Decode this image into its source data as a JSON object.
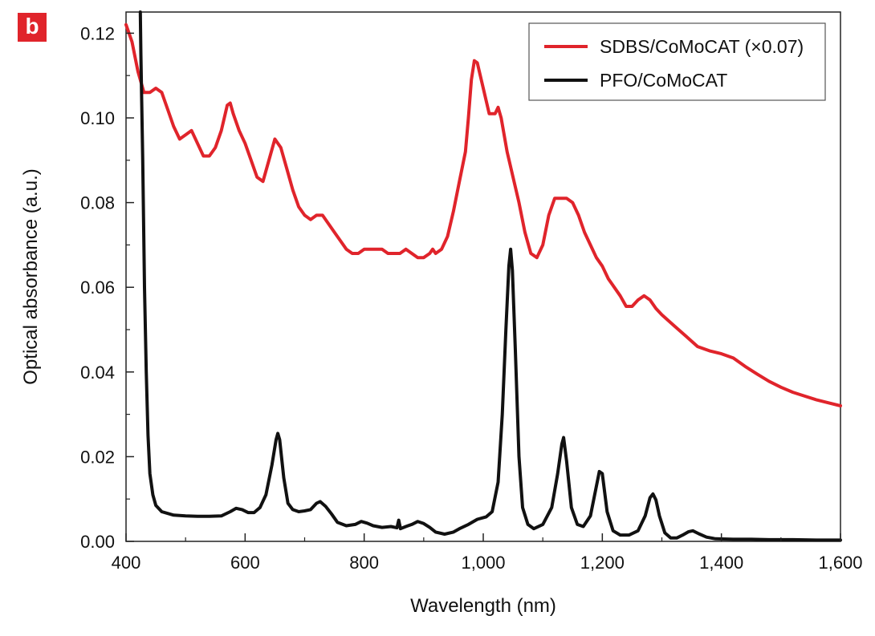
{
  "panel_label": "b",
  "chart_data": {
    "type": "line",
    "xlabel": "Wavelength (nm)",
    "ylabel": "Optical absorbance (a.u.)",
    "xlim": [
      400,
      1600
    ],
    "ylim": [
      0,
      0.125
    ],
    "x_ticks": [
      {
        "value": 400,
        "label": "400"
      },
      {
        "value": 600,
        "label": "600"
      },
      {
        "value": 800,
        "label": "800"
      },
      {
        "value": 1000,
        "label": "1,000"
      },
      {
        "value": 1200,
        "label": "1,200"
      },
      {
        "value": 1400,
        "label": "1,400"
      },
      {
        "value": 1600,
        "label": "1,600"
      }
    ],
    "y_ticks": [
      {
        "value": 0.0,
        "label": "0.00"
      },
      {
        "value": 0.02,
        "label": "0.02"
      },
      {
        "value": 0.04,
        "label": "0.04"
      },
      {
        "value": 0.06,
        "label": "0.06"
      },
      {
        "value": 0.08,
        "label": "0.08"
      },
      {
        "value": 0.1,
        "label": "0.10"
      },
      {
        "value": 0.12,
        "label": "0.12"
      }
    ],
    "grid": false,
    "legend_position": "top-right",
    "series": [
      {
        "name": "SDBS/CoMoCAT (×0.07)",
        "color": "#e0242b",
        "points": [
          [
            400,
            0.122
          ],
          [
            410,
            0.118
          ],
          [
            420,
            0.111
          ],
          [
            430,
            0.106
          ],
          [
            440,
            0.106
          ],
          [
            450,
            0.107
          ],
          [
            460,
            0.106
          ],
          [
            470,
            0.102
          ],
          [
            480,
            0.098
          ],
          [
            490,
            0.095
          ],
          [
            500,
            0.096
          ],
          [
            510,
            0.097
          ],
          [
            520,
            0.094
          ],
          [
            530,
            0.091
          ],
          [
            540,
            0.091
          ],
          [
            550,
            0.093
          ],
          [
            560,
            0.097
          ],
          [
            570,
            0.103
          ],
          [
            575,
            0.1035
          ],
          [
            580,
            0.101
          ],
          [
            590,
            0.097
          ],
          [
            600,
            0.094
          ],
          [
            610,
            0.09
          ],
          [
            620,
            0.086
          ],
          [
            630,
            0.085
          ],
          [
            640,
            0.09
          ],
          [
            650,
            0.095
          ],
          [
            660,
            0.093
          ],
          [
            670,
            0.088
          ],
          [
            680,
            0.083
          ],
          [
            690,
            0.079
          ],
          [
            700,
            0.077
          ],
          [
            710,
            0.076
          ],
          [
            720,
            0.077
          ],
          [
            730,
            0.077
          ],
          [
            740,
            0.075
          ],
          [
            750,
            0.073
          ],
          [
            760,
            0.071
          ],
          [
            770,
            0.069
          ],
          [
            780,
            0.068
          ],
          [
            790,
            0.068
          ],
          [
            800,
            0.069
          ],
          [
            810,
            0.069
          ],
          [
            820,
            0.069
          ],
          [
            830,
            0.069
          ],
          [
            840,
            0.068
          ],
          [
            850,
            0.068
          ],
          [
            860,
            0.068
          ],
          [
            870,
            0.069
          ],
          [
            880,
            0.068
          ],
          [
            890,
            0.067
          ],
          [
            900,
            0.067
          ],
          [
            910,
            0.068
          ],
          [
            915,
            0.069
          ],
          [
            920,
            0.068
          ],
          [
            930,
            0.069
          ],
          [
            940,
            0.072
          ],
          [
            950,
            0.078
          ],
          [
            960,
            0.085
          ],
          [
            970,
            0.092
          ],
          [
            975,
            0.1
          ],
          [
            980,
            0.109
          ],
          [
            985,
            0.1135
          ],
          [
            990,
            0.113
          ],
          [
            1000,
            0.107
          ],
          [
            1010,
            0.101
          ],
          [
            1020,
            0.101
          ],
          [
            1025,
            0.1025
          ],
          [
            1030,
            0.1
          ],
          [
            1040,
            0.092
          ],
          [
            1050,
            0.086
          ],
          [
            1060,
            0.08
          ],
          [
            1070,
            0.073
          ],
          [
            1080,
            0.068
          ],
          [
            1090,
            0.067
          ],
          [
            1100,
            0.07
          ],
          [
            1110,
            0.077
          ],
          [
            1120,
            0.081
          ],
          [
            1130,
            0.081
          ],
          [
            1140,
            0.081
          ],
          [
            1150,
            0.08
          ],
          [
            1160,
            0.077
          ],
          [
            1170,
            0.073
          ],
          [
            1180,
            0.07
          ],
          [
            1190,
            0.067
          ],
          [
            1200,
            0.065
          ],
          [
            1210,
            0.062
          ],
          [
            1220,
            0.06
          ],
          [
            1230,
            0.058
          ],
          [
            1240,
            0.0555
          ],
          [
            1250,
            0.0555
          ],
          [
            1260,
            0.057
          ],
          [
            1270,
            0.058
          ],
          [
            1280,
            0.057
          ],
          [
            1290,
            0.055
          ],
          [
            1300,
            0.0535
          ],
          [
            1320,
            0.051
          ],
          [
            1340,
            0.0485
          ],
          [
            1360,
            0.046
          ],
          [
            1380,
            0.045
          ],
          [
            1400,
            0.0443
          ],
          [
            1420,
            0.0433
          ],
          [
            1440,
            0.0413
          ],
          [
            1460,
            0.0395
          ],
          [
            1480,
            0.0378
          ],
          [
            1500,
            0.0364
          ],
          [
            1520,
            0.0352
          ],
          [
            1540,
            0.0343
          ],
          [
            1560,
            0.0334
          ],
          [
            1580,
            0.0327
          ],
          [
            1600,
            0.032
          ]
        ]
      },
      {
        "name": "PFO/CoMoCAT",
        "color": "#111111",
        "points": [
          [
            424,
            0.125
          ],
          [
            425,
            0.115
          ],
          [
            428,
            0.09
          ],
          [
            431,
            0.06
          ],
          [
            434,
            0.04
          ],
          [
            437,
            0.025
          ],
          [
            440,
            0.016
          ],
          [
            445,
            0.011
          ],
          [
            450,
            0.0085
          ],
          [
            460,
            0.007
          ],
          [
            480,
            0.0062
          ],
          [
            500,
            0.006
          ],
          [
            520,
            0.0059
          ],
          [
            540,
            0.0059
          ],
          [
            560,
            0.006
          ],
          [
            575,
            0.007
          ],
          [
            585,
            0.0078
          ],
          [
            595,
            0.0075
          ],
          [
            605,
            0.0068
          ],
          [
            615,
            0.0068
          ],
          [
            625,
            0.008
          ],
          [
            635,
            0.011
          ],
          [
            645,
            0.018
          ],
          [
            652,
            0.024
          ],
          [
            655,
            0.0255
          ],
          [
            658,
            0.024
          ],
          [
            665,
            0.015
          ],
          [
            672,
            0.009
          ],
          [
            680,
            0.0075
          ],
          [
            690,
            0.007
          ],
          [
            700,
            0.0072
          ],
          [
            710,
            0.0075
          ],
          [
            720,
            0.009
          ],
          [
            726,
            0.0094
          ],
          [
            735,
            0.0083
          ],
          [
            745,
            0.0065
          ],
          [
            755,
            0.0045
          ],
          [
            770,
            0.0037
          ],
          [
            785,
            0.004
          ],
          [
            795,
            0.0047
          ],
          [
            805,
            0.0043
          ],
          [
            815,
            0.0037
          ],
          [
            830,
            0.0033
          ],
          [
            845,
            0.0035
          ],
          [
            855,
            0.0032
          ],
          [
            858,
            0.005
          ],
          [
            861,
            0.003
          ],
          [
            870,
            0.0035
          ],
          [
            880,
            0.004
          ],
          [
            890,
            0.0047
          ],
          [
            900,
            0.0042
          ],
          [
            910,
            0.0033
          ],
          [
            920,
            0.0022
          ],
          [
            935,
            0.0017
          ],
          [
            950,
            0.0022
          ],
          [
            960,
            0.003
          ],
          [
            975,
            0.004
          ],
          [
            990,
            0.0052
          ],
          [
            1005,
            0.0058
          ],
          [
            1015,
            0.007
          ],
          [
            1025,
            0.014
          ],
          [
            1032,
            0.03
          ],
          [
            1038,
            0.05
          ],
          [
            1043,
            0.065
          ],
          [
            1046,
            0.069
          ],
          [
            1049,
            0.064
          ],
          [
            1054,
            0.045
          ],
          [
            1060,
            0.02
          ],
          [
            1066,
            0.008
          ],
          [
            1075,
            0.004
          ],
          [
            1085,
            0.003
          ],
          [
            1100,
            0.004
          ],
          [
            1115,
            0.008
          ],
          [
            1125,
            0.016
          ],
          [
            1132,
            0.023
          ],
          [
            1135,
            0.0245
          ],
          [
            1140,
            0.019
          ],
          [
            1148,
            0.008
          ],
          [
            1158,
            0.004
          ],
          [
            1168,
            0.0035
          ],
          [
            1180,
            0.006
          ],
          [
            1190,
            0.013
          ],
          [
            1195,
            0.0165
          ],
          [
            1200,
            0.016
          ],
          [
            1208,
            0.007
          ],
          [
            1218,
            0.0025
          ],
          [
            1230,
            0.0015
          ],
          [
            1245,
            0.0015
          ],
          [
            1260,
            0.0025
          ],
          [
            1272,
            0.006
          ],
          [
            1280,
            0.0103
          ],
          [
            1285,
            0.0112
          ],
          [
            1290,
            0.0098
          ],
          [
            1296,
            0.006
          ],
          [
            1305,
            0.002
          ],
          [
            1315,
            0.0008
          ],
          [
            1325,
            0.0008
          ],
          [
            1335,
            0.0015
          ],
          [
            1345,
            0.0023
          ],
          [
            1352,
            0.0025
          ],
          [
            1362,
            0.0018
          ],
          [
            1375,
            0.001
          ],
          [
            1390,
            0.0006
          ],
          [
            1420,
            0.0005
          ],
          [
            1450,
            0.0005
          ],
          [
            1480,
            0.0004
          ],
          [
            1520,
            0.0004
          ],
          [
            1560,
            0.0003
          ],
          [
            1600,
            0.0003
          ]
        ]
      }
    ]
  }
}
